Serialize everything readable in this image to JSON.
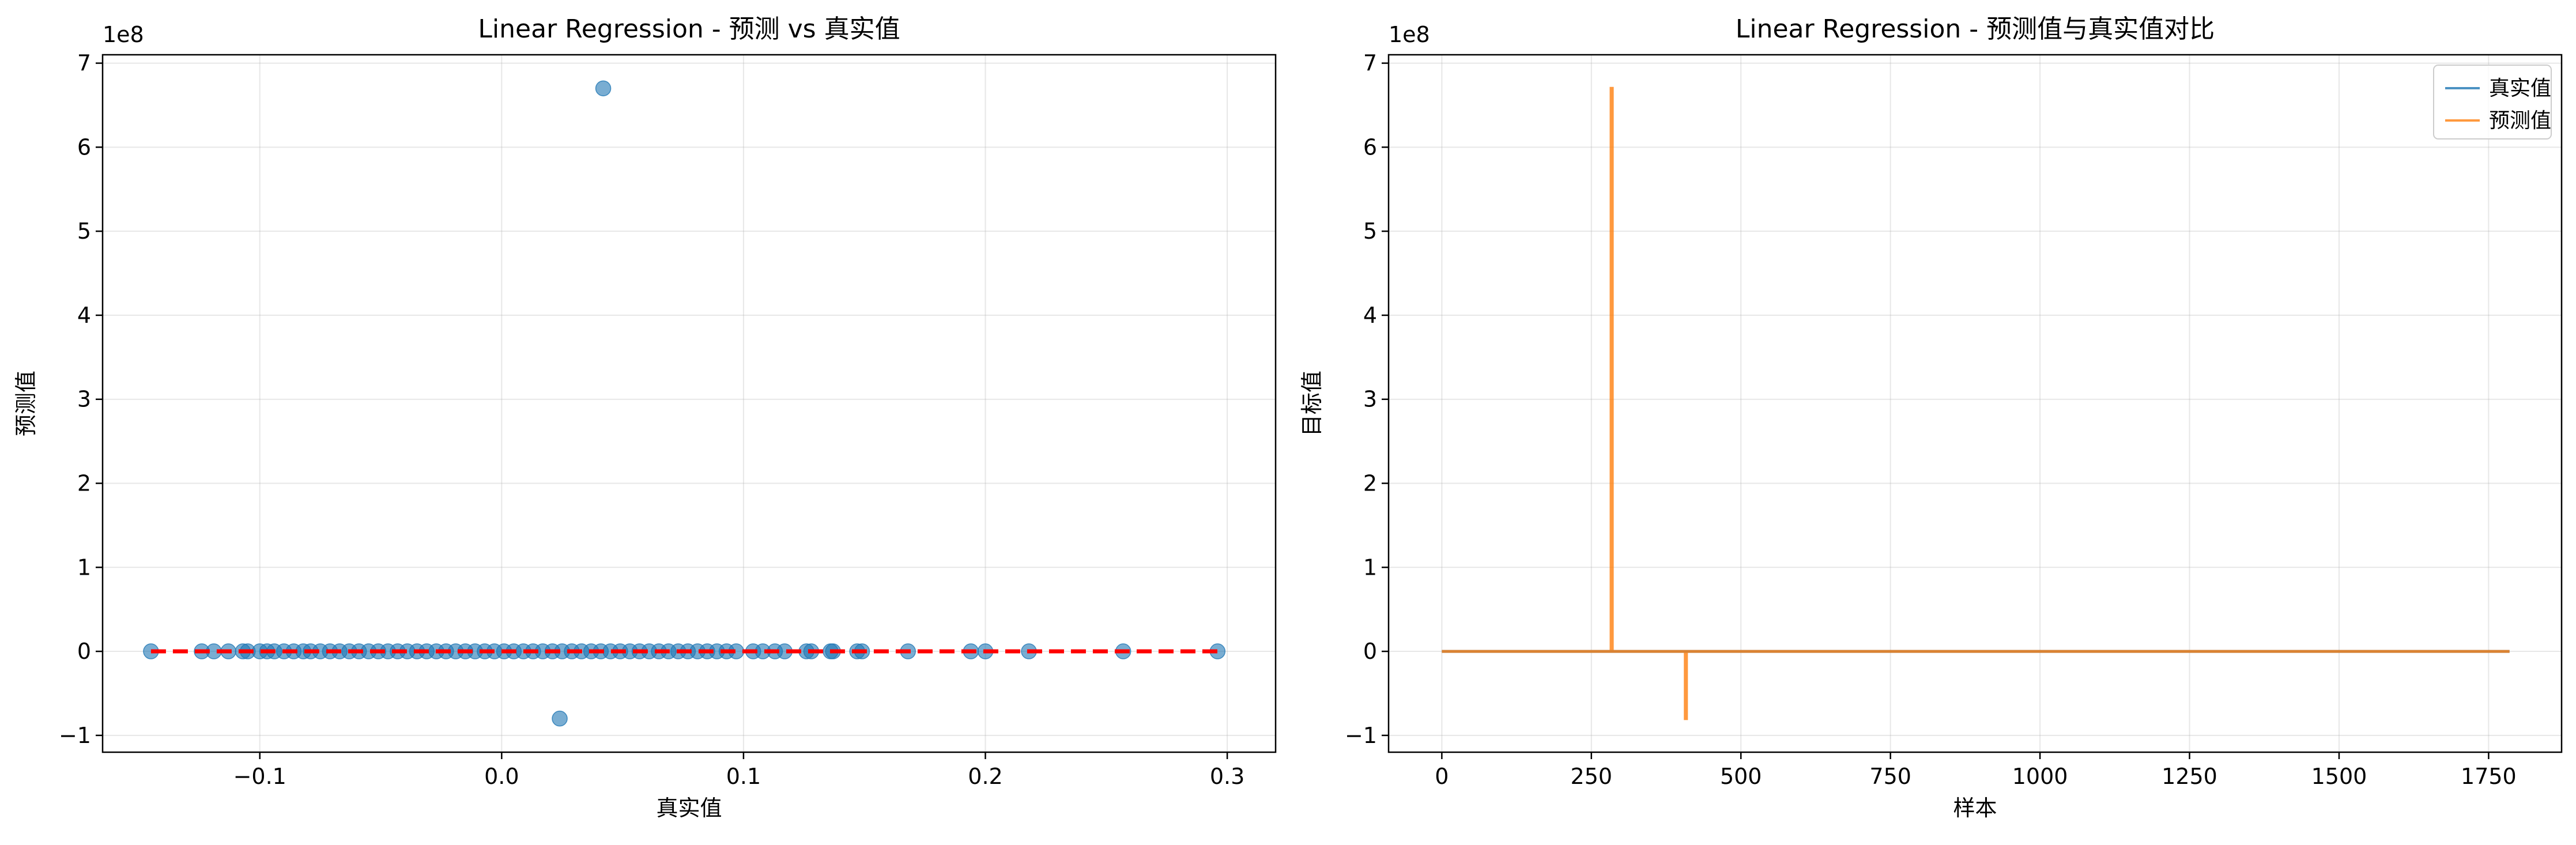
{
  "chart_data": [
    {
      "type": "scatter",
      "title": "Linear Regression - 预测 vs 真实值",
      "xlabel": "真实值",
      "ylabel": "预测值",
      "offset_label": "1e8",
      "xlim": [
        -0.165,
        0.32
      ],
      "ylim": [
        -1.2,
        7.1
      ],
      "xticks": [
        -0.1,
        0.0,
        0.1,
        0.2,
        0.3
      ],
      "xtick_labels": [
        "−0.1",
        "0.0",
        "0.1",
        "0.2",
        "0.3"
      ],
      "yticks": [
        -1,
        0,
        1,
        2,
        3,
        4,
        5,
        6,
        7
      ],
      "ytick_labels": [
        "−1",
        "0",
        "1",
        "2",
        "3",
        "4",
        "5",
        "6",
        "7"
      ],
      "grid": true,
      "point_color": "#1f77b4",
      "reference_line": {
        "x": [
          -0.145,
          0.296
        ],
        "y": [
          0,
          0
        ],
        "style": "dashed",
        "color": "#ff0000"
      },
      "outliers": [
        {
          "x": 0.042,
          "y": 6.7
        },
        {
          "x": 0.024,
          "y": -0.8
        }
      ],
      "points_at_zero_x": [
        -0.145,
        -0.124,
        -0.119,
        -0.113,
        -0.107,
        -0.105,
        -0.1,
        -0.097,
        -0.094,
        -0.09,
        -0.086,
        -0.082,
        -0.079,
        -0.075,
        -0.071,
        -0.067,
        -0.063,
        -0.059,
        -0.055,
        -0.051,
        -0.047,
        -0.043,
        -0.039,
        -0.035,
        -0.031,
        -0.027,
        -0.023,
        -0.019,
        -0.015,
        -0.011,
        -0.007,
        -0.003,
        0.001,
        0.005,
        0.009,
        0.013,
        0.017,
        0.021,
        0.025,
        0.029,
        0.033,
        0.037,
        0.041,
        0.045,
        0.049,
        0.053,
        0.057,
        0.061,
        0.065,
        0.069,
        0.073,
        0.077,
        0.081,
        0.085,
        0.089,
        0.093,
        0.097,
        0.104,
        0.108,
        0.113,
        0.117,
        0.126,
        0.128,
        0.136,
        0.137,
        0.147,
        0.149,
        0.168,
        0.194,
        0.2,
        0.218,
        0.257,
        0.296
      ]
    },
    {
      "type": "line",
      "title": "Linear Regression - 预测值与真实值对比",
      "xlabel": "样本",
      "ylabel": "目标值",
      "offset_label": "1e8",
      "xlim": [
        -89,
        1872
      ],
      "ylim": [
        -1.2,
        7.1
      ],
      "xticks": [
        0,
        250,
        500,
        750,
        1000,
        1250,
        1500,
        1750
      ],
      "xtick_labels": [
        "0",
        "250",
        "500",
        "750",
        "1000",
        "1250",
        "1500",
        "1750"
      ],
      "yticks": [
        -1,
        0,
        1,
        2,
        3,
        4,
        5,
        6,
        7
      ],
      "ytick_labels": [
        "−1",
        "0",
        "1",
        "2",
        "3",
        "4",
        "5",
        "6",
        "7"
      ],
      "grid": true,
      "legend_position": "top-right",
      "series": [
        {
          "name": "真实值",
          "color": "#1f77b4",
          "x": [
            0,
            1785
          ],
          "y": [
            0,
            0
          ]
        },
        {
          "name": "预测值",
          "color": "#ff7f0e",
          "x": [
            0,
            283,
            283,
            285,
            285,
            407,
            407,
            409,
            409,
            1785
          ],
          "y": [
            0,
            0,
            6.7,
            6.7,
            0,
            0,
            -0.8,
            -0.8,
            0,
            0
          ]
        }
      ]
    }
  ]
}
